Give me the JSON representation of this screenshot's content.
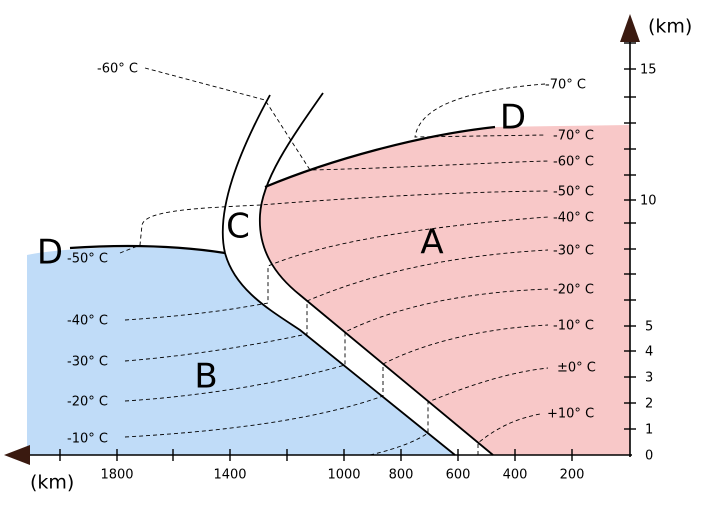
{
  "axes": {
    "x_unit": "(km)",
    "x_ticks": [
      "1800",
      "1400",
      "1000",
      "800",
      "600",
      "400",
      "200"
    ],
    "y_unit": "(km)",
    "y_ticks": [
      "0",
      "1",
      "2",
      "3",
      "4",
      "5",
      "10",
      "15"
    ]
  },
  "regions": [
    "D",
    "C",
    "A",
    "B",
    "D"
  ],
  "isotherms_warm": [
    "-70° C",
    "-70° C",
    "-60° C",
    "-50° C",
    "-40° C",
    "-30° C",
    "-20° C",
    "-10° C",
    "±0° C",
    "+10° C"
  ],
  "isotherms_cold": [
    "-60° C",
    "-50° C",
    "-40° C",
    "-30° C",
    "-20° C",
    "-10° C"
  ]
}
